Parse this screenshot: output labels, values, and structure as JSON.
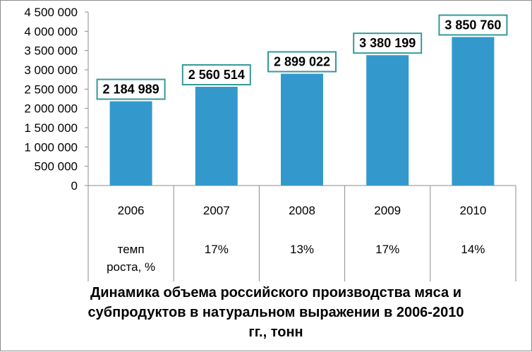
{
  "chart_data": {
    "type": "bar",
    "categories": [
      "2006",
      "2007",
      "2008",
      "2009",
      "2010"
    ],
    "values": [
      2184989,
      2560514,
      2899022,
      3380199,
      3850760
    ],
    "data_labels": [
      "2 184 989",
      "2 560 514",
      "2 899 022",
      "3 380 199",
      "3 850 760"
    ],
    "ylim": [
      0,
      4500000
    ],
    "y_ticks": [
      0,
      500000,
      1000000,
      1500000,
      2000000,
      2500000,
      3000000,
      3500000,
      4000000,
      4500000
    ],
    "y_tick_labels": [
      "0",
      "500 000",
      "1 000 000",
      "1 500 000",
      "2 000 000",
      "2 500 000",
      "3 000 000",
      "3 500 000",
      "4 000 000",
      "4 500 000"
    ],
    "growth_row_label": [
      "темп",
      "роста, %"
    ],
    "growth_rates": [
      "",
      "17%",
      "13%",
      "17%",
      "14%"
    ],
    "title_lines": [
      "Динамика объема российского производства мяса и",
      "субпродуктов в натуральном выражении в 2006-2010",
      "гг., тонн"
    ],
    "bar_color": "#3399cc",
    "label_border_color": "#339999",
    "grid": false
  }
}
